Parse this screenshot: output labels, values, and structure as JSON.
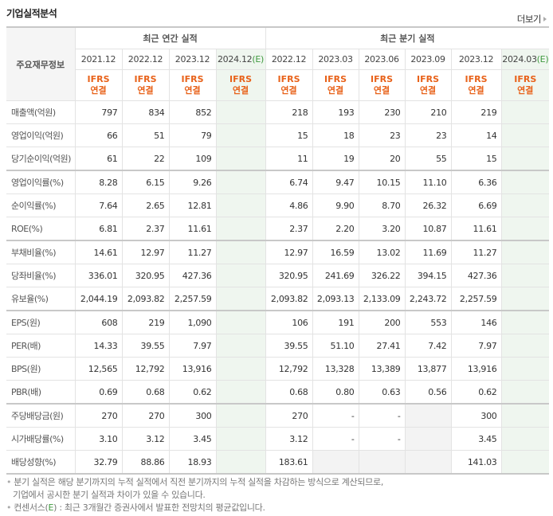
{
  "title": "기업실적분석",
  "more_label": "더보기",
  "table": {
    "row_header": "주요재무정보",
    "annual_group": "최근 연간 실적",
    "quarter_group": "최근 분기 실적",
    "periods": [
      {
        "label": "2021.12",
        "est": ""
      },
      {
        "label": "2022.12",
        "est": ""
      },
      {
        "label": "2023.12",
        "est": ""
      },
      {
        "label": "2024.12",
        "est": "(E)"
      },
      {
        "label": "2022.12",
        "est": ""
      },
      {
        "label": "2023.03",
        "est": ""
      },
      {
        "label": "2023.06",
        "est": ""
      },
      {
        "label": "2023.09",
        "est": ""
      },
      {
        "label": "2023.12",
        "est": ""
      },
      {
        "label": "2024.03",
        "est": "(E)"
      }
    ],
    "ifrs_top": "IFRS",
    "ifrs_bottom": "연결",
    "rows": [
      {
        "label": "매출액(억원)",
        "values": [
          "797",
          "834",
          "852",
          "",
          "218",
          "193",
          "230",
          "210",
          "219",
          ""
        ]
      },
      {
        "label": "영업이익(억원)",
        "values": [
          "66",
          "51",
          "79",
          "",
          "15",
          "18",
          "23",
          "23",
          "14",
          ""
        ]
      },
      {
        "label": "당기순이익(억원)",
        "values": [
          "61",
          "22",
          "109",
          "",
          "11",
          "19",
          "20",
          "55",
          "15",
          ""
        ]
      },
      {
        "label": "영업이익률(%)",
        "values": [
          "8.28",
          "6.15",
          "9.26",
          "",
          "6.74",
          "9.47",
          "10.15",
          "11.10",
          "6.36",
          ""
        ]
      },
      {
        "label": "순이익률(%)",
        "values": [
          "7.64",
          "2.65",
          "12.81",
          "",
          "4.86",
          "9.90",
          "8.70",
          "26.32",
          "6.69",
          ""
        ]
      },
      {
        "label": "ROE(%)",
        "values": [
          "6.81",
          "2.37",
          "11.61",
          "",
          "2.37",
          "2.20",
          "3.20",
          "10.87",
          "11.61",
          ""
        ]
      },
      {
        "label": "부채비율(%)",
        "values": [
          "14.61",
          "12.97",
          "11.27",
          "",
          "12.97",
          "16.59",
          "13.02",
          "11.69",
          "11.27",
          ""
        ]
      },
      {
        "label": "당좌비율(%)",
        "values": [
          "336.01",
          "320.95",
          "427.36",
          "",
          "320.95",
          "241.69",
          "326.22",
          "394.15",
          "427.36",
          ""
        ]
      },
      {
        "label": "유보율(%)",
        "values": [
          "2,044.19",
          "2,093.82",
          "2,257.59",
          "",
          "2,093.82",
          "2,093.13",
          "2,133.09",
          "2,243.72",
          "2,257.59",
          ""
        ]
      },
      {
        "label": "EPS(원)",
        "values": [
          "608",
          "219",
          "1,090",
          "",
          "106",
          "191",
          "200",
          "553",
          "146",
          ""
        ]
      },
      {
        "label": "PER(배)",
        "values": [
          "14.33",
          "39.55",
          "7.97",
          "",
          "39.55",
          "51.10",
          "27.41",
          "7.42",
          "7.97",
          ""
        ]
      },
      {
        "label": "BPS(원)",
        "values": [
          "12,565",
          "12,792",
          "13,916",
          "",
          "12,792",
          "13,328",
          "13,389",
          "13,877",
          "13,916",
          ""
        ]
      },
      {
        "label": "PBR(배)",
        "values": [
          "0.69",
          "0.68",
          "0.62",
          "",
          "0.68",
          "0.80",
          "0.63",
          "0.56",
          "0.62",
          ""
        ]
      },
      {
        "label": "주당배당금(원)",
        "values": [
          "270",
          "270",
          "300",
          "",
          "270",
          "-",
          "-",
          null,
          "300",
          ""
        ]
      },
      {
        "label": "시가배당률(%)",
        "values": [
          "3.10",
          "3.12",
          "3.45",
          "",
          "3.12",
          "-",
          "-",
          null,
          "3.45",
          ""
        ]
      },
      {
        "label": "배당성향(%)",
        "values": [
          "32.79",
          "88.86",
          "18.93",
          "",
          "183.61",
          null,
          null,
          null,
          "141.03",
          ""
        ]
      }
    ]
  },
  "notes": {
    "line1": "분기 실적은 해당 분기까지의 누적 실적에서 직전 분기까지의 누적 실적을 차감하는 방식으로 계산되므로,",
    "line2": "기업에서 공시한 분기 실적과 차이가 있을 수 있습니다.",
    "line3_pre": "컨센서스(",
    "line3_e": "E",
    "line3_post": ") : 최근 3개월간 증권사에서 발표한 전망치의 평균값입니다."
  }
}
